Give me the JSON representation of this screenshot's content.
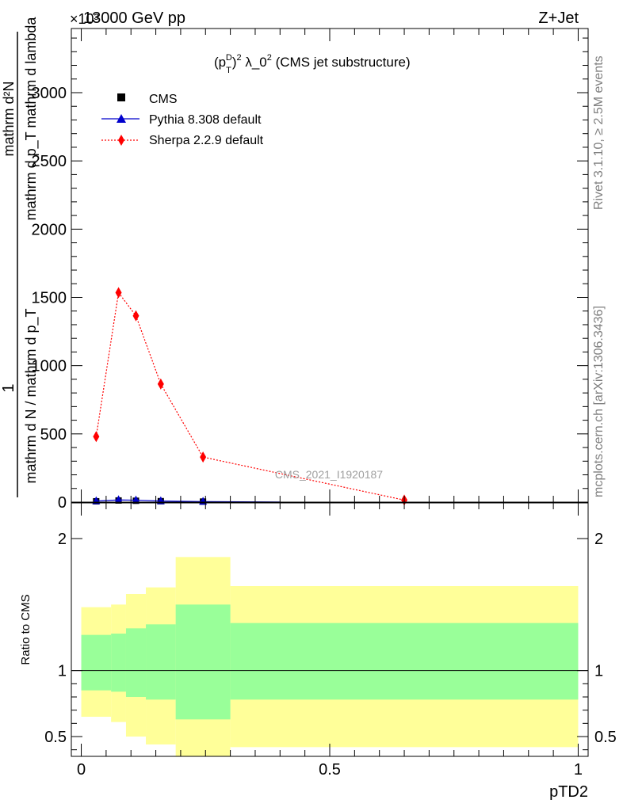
{
  "header": {
    "left": "13000 GeV pp",
    "right": "Z+Jet",
    "exponent": "×10³"
  },
  "side_labels": {
    "rivet": "Rivet 3.1.10, ≥ 2.5M events",
    "mcplots": "mcplots.cern.ch [arXiv:1306.3436]"
  },
  "watermark": "CMS_2021_I1920187",
  "chart_data": [
    {
      "type": "line",
      "title": "(p_T^D)² λ_0² (CMS jet substructure)",
      "title_parts": {
        "a": "(p",
        "sub": "T",
        "sup": "D",
        "b": ")",
        "sup2": "2",
        "c": " λ_0",
        "sup3": "2",
        "d": " (CMS jet substructure)"
      },
      "xlabel": "pTD2",
      "ylabel_parts": {
        "numerator_top": "1",
        "denominator_top": "mathrm d N / mathrm d p_T",
        "numerator_bottom": "mathrm d²N",
        "denominator_bottom": "mathrm d p_T mathrm d lambda"
      },
      "xlim": [
        -0.02,
        1.02
      ],
      "ylim": [
        0,
        3470
      ],
      "y_multiplier": 1000,
      "yticks": [
        0,
        500,
        1000,
        1500,
        2000,
        2500,
        3000
      ],
      "ytick_labels": [
        "0",
        "500",
        "1000",
        "1500",
        "2000",
        "2500",
        "3000"
      ],
      "legend": {
        "placement": "top-left"
      },
      "series": [
        {
          "name": "CMS",
          "color": "#000000",
          "marker": "square",
          "x": [
            0.03,
            0.075,
            0.11,
            0.16,
            0.245
          ],
          "y": [
            6,
            12,
            10,
            7,
            4
          ]
        },
        {
          "name": "Pythia 8.308 default",
          "color": "#0000cc",
          "marker": "triangle",
          "line": "solid",
          "x": [
            0.03,
            0.075,
            0.11,
            0.16,
            0.245,
            0.4
          ],
          "y": [
            8,
            16,
            14,
            8,
            4,
            1
          ]
        },
        {
          "name": "Sherpa 2.2.9 default",
          "color": "#ff0000",
          "marker": "diamond",
          "line": "dotted",
          "x": [
            0.03,
            0.075,
            0.11,
            0.16,
            0.245,
            0.65
          ],
          "y": [
            480,
            1535,
            1365,
            865,
            330,
            15
          ]
        }
      ]
    },
    {
      "type": "area",
      "ylabel": "Ratio to CMS",
      "xlabel": "pTD2",
      "xlim": [
        -0.02,
        1.02
      ],
      "ylim": [
        0.35,
        2.27
      ],
      "yticks": [
        0.5,
        1,
        2
      ],
      "ytick_labels": [
        "0.5",
        "1",
        "2"
      ],
      "xticks": [
        0,
        0.5,
        1
      ],
      "xtick_labels": [
        "0",
        "0.5",
        "1"
      ],
      "reference_line": 1,
      "bands": {
        "bin_edges": [
          0,
          0.06,
          0.09,
          0.13,
          0.19,
          0.3,
          1.0
        ],
        "inner_lo": [
          0.85,
          0.84,
          0.8,
          0.78,
          0.63,
          0.78
        ],
        "inner_hi": [
          1.27,
          1.28,
          1.32,
          1.35,
          1.5,
          1.36
        ],
        "outer_lo": [
          0.65,
          0.61,
          0.5,
          0.44,
          0.35,
          0.42
        ],
        "outer_hi": [
          1.48,
          1.5,
          1.58,
          1.63,
          1.86,
          1.64
        ],
        "inner_color": "#99ff99",
        "outer_color": "#ffff99"
      }
    }
  ]
}
